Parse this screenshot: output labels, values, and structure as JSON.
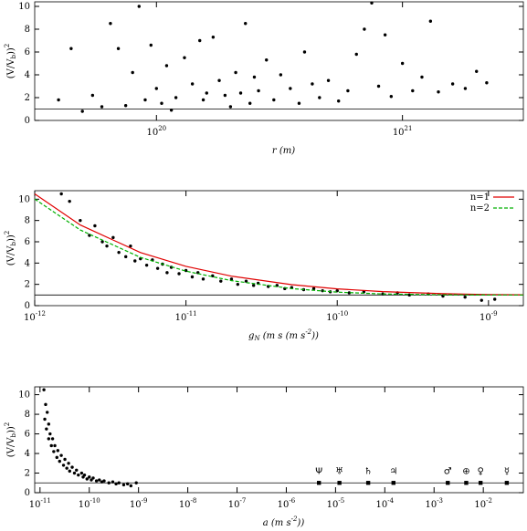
{
  "chart_data": [
    {
      "type": "scatter",
      "x_label": "r (m)",
      "y_label": "(V/V_b)^2",
      "log_x": true,
      "xlim": [
        3.2e+19,
        3.1e+21
      ],
      "ylim": [
        0,
        10.4
      ],
      "xticks": [
        {
          "value": 1e+20,
          "label": "10^20"
        },
        {
          "value": 1e+21,
          "label": "10^21"
        }
      ],
      "yticks": [
        0,
        2,
        4,
        6,
        8,
        10
      ],
      "hline": 1,
      "series": [
        {
          "color": "#000000",
          "x": [
            4e+19,
            4.5e+19,
            5e+19,
            5.5e+19,
            6e+19,
            6.5e+19,
            7e+19,
            7.5e+19,
            8e+19,
            8.5e+19,
            9e+19,
            9.5e+19,
            1e+20,
            1.05e+20,
            1.1e+20,
            1.15e+20,
            1.2e+20,
            1.3e+20,
            1.4e+20,
            1.5e+20,
            1.55e+20,
            1.6e+20,
            1.7e+20,
            1.8e+20,
            1.9e+20,
            2e+20,
            2.1e+20,
            2.2e+20,
            2.3e+20,
            2.4e+20,
            2.5e+20,
            2.6e+20,
            2.8e+20,
            3e+20,
            3.2e+20,
            3.5e+20,
            3.8e+20,
            4e+20,
            4.3e+20,
            4.6e+20,
            5e+20,
            5.5e+20,
            6e+20,
            6.5e+20,
            7e+20,
            7.5e+20,
            8e+20,
            8.5e+20,
            9e+20,
            1e+21,
            1.1e+21,
            1.2e+21,
            1.3e+21,
            1.4e+21,
            1.6e+21,
            1.8e+21,
            2e+21,
            2.2e+21
          ],
          "values": [
            1.8,
            6.3,
            0.8,
            2.2,
            1.2,
            8.5,
            6.3,
            1.3,
            4.2,
            10,
            1.8,
            6.6,
            2.8,
            1.5,
            4.8,
            0.9,
            2.0,
            5.5,
            3.2,
            7.0,
            1.8,
            2.4,
            7.3,
            3.5,
            2.2,
            1.2,
            4.2,
            2.4,
            8.5,
            1.5,
            3.8,
            2.6,
            5.3,
            1.8,
            4.0,
            2.8,
            1.5,
            6.0,
            3.2,
            2.0,
            3.5,
            1.7,
            2.6,
            5.8,
            8.0,
            10.3,
            3.0,
            7.5,
            2.1,
            5.0,
            2.6,
            3.8,
            8.7,
            2.5,
            3.2,
            2.8,
            4.3,
            3.3
          ]
        }
      ]
    },
    {
      "type": "scatter",
      "x_label": "g_N (m s^-2)",
      "y_label": "(V/V_b)^2",
      "log_x": true,
      "xlim": [
        1e-12,
        1.7e-09
      ],
      "ylim": [
        0,
        10.8
      ],
      "xticks": [
        {
          "value": 1e-12,
          "label": "10^-12"
        },
        {
          "value": 1e-11,
          "label": "10^-11"
        },
        {
          "value": 1e-10,
          "label": "10^-10"
        },
        {
          "value": 1e-09,
          "label": "10^-9"
        }
      ],
      "yticks": [
        0,
        2,
        4,
        6,
        8,
        10
      ],
      "hline": 1,
      "legend": "top-right",
      "series": [
        {
          "color": "#000000",
          "x": [
            1.5e-12,
            1.7e-12,
            2e-12,
            2.3e-12,
            2.5e-12,
            2.8e-12,
            3e-12,
            3.3e-12,
            3.6e-12,
            4e-12,
            4.3e-12,
            4.6e-12,
            5e-12,
            5.5e-12,
            6e-12,
            6.5e-12,
            7e-12,
            7.5e-12,
            8e-12,
            9e-12,
            1e-11,
            1.1e-11,
            1.2e-11,
            1.3e-11,
            1.5e-11,
            1.7e-11,
            2e-11,
            2.2e-11,
            2.5e-11,
            2.8e-11,
            3e-11,
            3.5e-11,
            4e-11,
            4.5e-11,
            5e-11,
            6e-11,
            7e-11,
            8e-11,
            9e-11,
            1e-10,
            1.2e-10,
            1.5e-10,
            2e-10,
            2.5e-10,
            3e-10,
            4e-10,
            5e-10,
            7e-10,
            9e-10,
            1.1e-09
          ],
          "values": [
            10.5,
            9.8,
            8.0,
            6.6,
            7.5,
            6.0,
            5.6,
            6.4,
            5.0,
            4.6,
            5.6,
            4.2,
            4.4,
            3.8,
            4.3,
            3.5,
            3.9,
            3.1,
            3.6,
            3.0,
            3.3,
            2.7,
            3.1,
            2.5,
            2.8,
            2.3,
            2.5,
            2.0,
            2.3,
            1.9,
            2.1,
            1.8,
            1.9,
            1.6,
            1.7,
            1.5,
            1.6,
            1.4,
            1.3,
            1.4,
            1.2,
            1.3,
            1.1,
            1.2,
            1.0,
            1.1,
            0.9,
            0.8,
            0.5,
            0.6
          ]
        },
        {
          "name": "n=1",
          "color": "#e00000",
          "style": "line",
          "x": [
            1e-12,
            2e-12,
            5e-12,
            1e-11,
            2e-11,
            5e-11,
            1e-10,
            2e-10,
            5e-10,
            1e-09,
            1.7e-09
          ],
          "values": [
            10.5,
            7.58,
            4.99,
            3.69,
            2.77,
            1.97,
            1.58,
            1.32,
            1.12,
            1.044,
            1.016
          ]
        },
        {
          "name": "n=2",
          "color": "#00b000",
          "style": "dashed",
          "x": [
            1e-12,
            2e-12,
            5e-12,
            1e-11,
            2e-11,
            5e-11,
            1e-10,
            2e-10,
            5e-10,
            1e-09,
            1.7e-09
          ],
          "values": [
            10.02,
            7.11,
            4.53,
            3.24,
            2.35,
            1.6,
            1.272,
            1.099,
            1.019,
            1.005,
            1.002
          ]
        }
      ]
    },
    {
      "type": "scatter",
      "x_label": "a (m s^-2)",
      "y_label": "(V/V_b)^2",
      "log_x": true,
      "xlim": [
        7.8e-12,
        0.065
      ],
      "ylim": [
        0,
        10.8
      ],
      "xticks": [
        {
          "value": 1e-11,
          "label": "10^-11"
        },
        {
          "value": 1e-10,
          "label": "10^-10"
        },
        {
          "value": 1e-09,
          "label": "10^-9"
        },
        {
          "value": 1e-08,
          "label": "10^-8"
        },
        {
          "value": 1e-07,
          "label": "10^-7"
        },
        {
          "value": 1e-06,
          "label": "10^-6"
        },
        {
          "value": 1e-05,
          "label": "10^-5"
        },
        {
          "value": 0.0001,
          "label": "10^-4"
        },
        {
          "value": 0.001,
          "label": "10^-3"
        },
        {
          "value": 0.01,
          "label": "10^-2"
        }
      ],
      "yticks": [
        0,
        2,
        4,
        6,
        8,
        10
      ],
      "hline": 1,
      "series": [
        {
          "color": "#000000",
          "x": [
            1.2e-11,
            1.3e-11,
            1.25e-11,
            1.4e-11,
            1.35e-11,
            1.5e-11,
            1.5e-11,
            1.6e-11,
            1.7e-11,
            1.8e-11,
            1.9e-11,
            2e-11,
            2.2e-11,
            2.3e-11,
            2.5e-11,
            2.7e-11,
            3e-11,
            3.2e-11,
            3.5e-11,
            3.8e-11,
            4e-11,
            4.5e-11,
            5e-11,
            5.5e-11,
            6e-11,
            7e-11,
            7.5e-11,
            8e-11,
            9e-11,
            1e-10,
            1.1e-10,
            1.2e-10,
            1.4e-10,
            1.6e-10,
            1.8e-10,
            2e-10,
            2.5e-10,
            3e-10,
            3.5e-10,
            4e-10,
            5e-10,
            6e-10,
            7e-10,
            9e-10
          ],
          "values": [
            10.5,
            9.0,
            7.5,
            8.2,
            6.5,
            7.0,
            5.5,
            6.0,
            4.8,
            5.5,
            4.2,
            4.8,
            3.6,
            4.3,
            3.2,
            3.8,
            2.8,
            3.4,
            2.5,
            3.0,
            2.2,
            2.6,
            2.0,
            2.3,
            1.8,
            2.0,
            1.6,
            1.8,
            1.4,
            1.6,
            1.3,
            1.5,
            1.2,
            1.3,
            1.1,
            1.2,
            1.0,
            1.1,
            0.9,
            1.0,
            0.8,
            0.9,
            0.7,
            1.0
          ]
        },
        {
          "color": "#000000",
          "marker": "square",
          "x": [
            4.6e-06,
            1.2e-05,
            4.6e-05,
            0.00015,
            0.0019,
            0.0045,
            0.0088,
            0.03
          ],
          "values": [
            1,
            1,
            1,
            1,
            1,
            1,
            1,
            1
          ],
          "labels": [
            "Ψ",
            "♅",
            "♄",
            "♃",
            "♂",
            "⊕",
            "♀",
            "☿"
          ]
        }
      ]
    }
  ]
}
